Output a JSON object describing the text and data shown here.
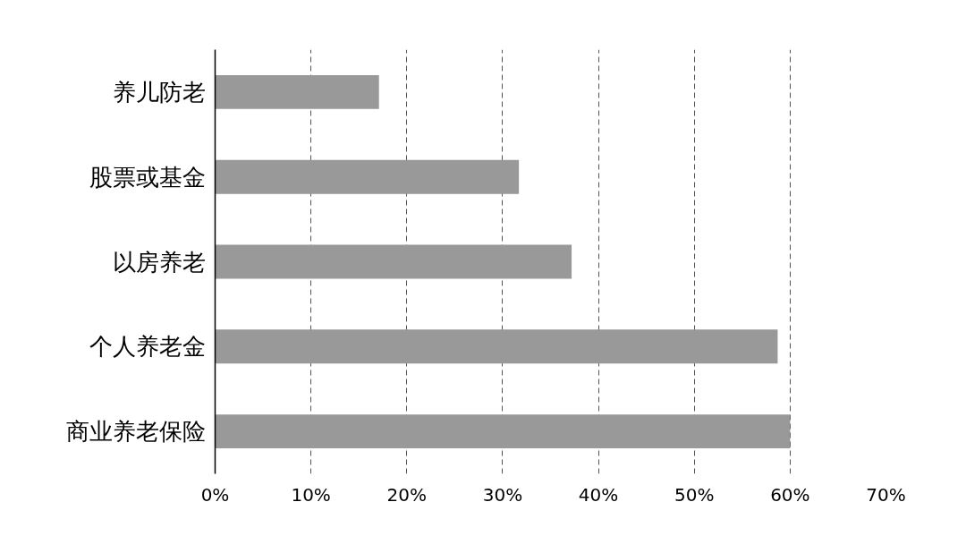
{
  "chart_data": {
    "type": "bar",
    "orientation": "horizontal",
    "categories": [
      "养儿防老",
      "股票或基金",
      "以房养老",
      "个人养老金",
      "商业养老保险"
    ],
    "values": [
      17.1,
      31.7,
      37.2,
      58.7,
      60.0
    ],
    "color": "#999999",
    "xlim": [
      0,
      70
    ],
    "xticks": [
      {
        "value": 0,
        "label": "0%"
      },
      {
        "value": 10,
        "label": "10%"
      },
      {
        "value": 20,
        "label": "20%"
      },
      {
        "value": 30,
        "label": "30%"
      },
      {
        "value": 40,
        "label": "40%"
      },
      {
        "value": 50,
        "label": "50%"
      },
      {
        "value": 60,
        "label": "60%"
      },
      {
        "value": 70,
        "label": "70%"
      }
    ],
    "grid": "x"
  }
}
